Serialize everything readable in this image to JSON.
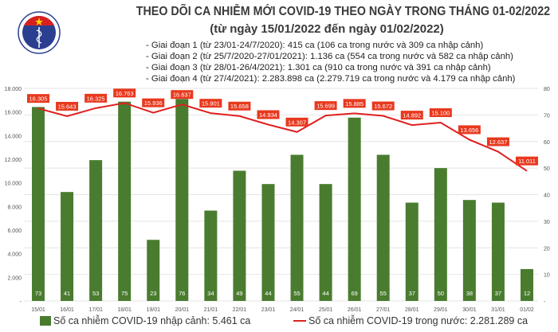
{
  "header": {
    "title": "THEO DÕI CA NHIỄM MỚI COVID-19 THEO NGÀY TRONG THÁNG 01-02/2022",
    "subtitle": "(từ ngày 15/01/2022 đến ngày 01/02/2022)",
    "notes": [
      "- Giai đoạn 1 (từ 23/01-24/7/2020): 415 ca (106 ca trong nước và 309 ca nhập cảnh)",
      "- Giai đoạn 2 (từ 25/7/2020-27/01/2021): 1.136 ca (554 ca trong nước và 582 ca nhập cảnh)",
      "- Giai đoạn 3 (từ 28/01-26/4/2021): 1.301 ca (910 ca trong nước và 391 ca nhập cảnh)",
      "- Giai đoạn 4 (từ 27/4/2021): 2.283.898 ca (2.279.719 ca trong nước và 4.179 ca nhập cảnh)"
    ],
    "logo_text": "BỘ Y TẾ"
  },
  "chart_data": {
    "type": "bar+line",
    "categories": [
      "15/01",
      "16/01",
      "17/01",
      "18/01",
      "19/01",
      "20/01",
      "21/01",
      "22/01",
      "23/01",
      "24/01",
      "25/01",
      "26/01",
      "27/01",
      "28/01",
      "29/01",
      "30/01",
      "31/01",
      "01/02"
    ],
    "series": [
      {
        "name": "Số ca nhiễm COVID-19 nhập cảnh: 5.461 ca",
        "type": "bar",
        "axis": "right",
        "values": [
          73,
          41,
          53,
          75,
          23,
          76,
          34,
          49,
          44,
          55,
          44,
          69,
          55,
          37,
          50,
          38,
          37,
          12
        ],
        "labels": [
          "73",
          "41",
          "53",
          "75",
          "23",
          "76",
          "34",
          "49",
          "44",
          "55",
          "44",
          "69",
          "55",
          "37",
          "50",
          "38",
          "37",
          "12"
        ],
        "color": "#4a7c2f"
      },
      {
        "name": "Số ca nhiễm COVID-19 trong nước: 2.281.289 ca",
        "type": "line",
        "axis": "left",
        "values": [
          16305,
          15643,
          16325,
          16763,
          15936,
          16637,
          15901,
          15658,
          14934,
          14307,
          15699,
          15885,
          15672,
          14892,
          15100,
          13656,
          12637,
          11011
        ],
        "labels": [
          "16.305",
          "15.643",
          "16.325",
          "16.763",
          "15.936",
          "16.637",
          "15.901",
          "15.658",
          "14.934",
          "14.307",
          "15.699",
          "15.885",
          "15.672",
          "14.892",
          "15.100",
          "13.656",
          "12.637",
          "11.011"
        ],
        "color": "#e02020"
      }
    ],
    "left_axis": {
      "ylim": [
        0,
        18000
      ],
      "ticks": [
        "-",
        "2.000",
        "4.000",
        "6.000",
        "8.000",
        "10.000",
        "12.000",
        "14.000",
        "16.000",
        "18.000"
      ]
    },
    "right_axis": {
      "ylim": [
        0,
        80
      ],
      "ticks": [
        "-",
        "10",
        "20",
        "30",
        "40",
        "50",
        "60",
        "70",
        "80"
      ]
    },
    "grid": true,
    "legend": "bottom"
  }
}
